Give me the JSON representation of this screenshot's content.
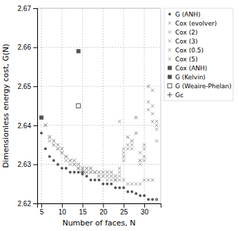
{
  "chart_data": {
    "type": "scatter",
    "xlabel": "Number of faces, N",
    "ylabel": "Dimensionless energy cost, G(N)",
    "xlim": [
      4,
      34
    ],
    "ylim": [
      2.62,
      2.67
    ],
    "xticks": [
      5,
      10,
      15,
      20,
      25,
      30
    ],
    "yticks": [
      2.62,
      2.63,
      2.64,
      2.65,
      2.66,
      2.67
    ],
    "grid": true,
    "legend": "upper right",
    "series": [
      {
        "name": "G (ANH)",
        "color": "#555555",
        "marker": "circle",
        "x": [
          5,
          6,
          7,
          8,
          9,
          10,
          11,
          12,
          13,
          14,
          15,
          16,
          17,
          18,
          19,
          20,
          21,
          22,
          23,
          24,
          25,
          26,
          27,
          28,
          29,
          30,
          31,
          32,
          33
        ],
        "values": [
          2.638,
          2.634,
          2.632,
          2.631,
          2.63,
          2.629,
          2.629,
          2.628,
          2.628,
          2.628,
          2.6275,
          2.627,
          2.626,
          2.626,
          2.626,
          2.625,
          2.625,
          2.625,
          2.624,
          2.624,
          2.624,
          2.623,
          2.623,
          2.6225,
          2.622,
          2.622,
          2.621,
          2.621,
          2.621
        ]
      },
      {
        "name": "Cox (evolver)",
        "color": "#999999",
        "marker": "cross",
        "x": [
          6,
          7,
          8,
          9,
          10,
          11,
          12,
          13,
          14,
          15,
          16,
          17,
          18,
          19,
          20,
          21,
          22,
          23,
          24,
          25,
          26,
          27,
          28,
          29,
          30,
          31,
          32,
          33
        ],
        "values": [
          2.64,
          2.636,
          2.635,
          2.634,
          2.633,
          2.631,
          2.63,
          2.63,
          2.629,
          2.628,
          2.628,
          2.628,
          2.628,
          2.627,
          2.627,
          2.626,
          2.626,
          2.626,
          2.626,
          2.626,
          2.625,
          2.625,
          2.625,
          2.625,
          2.626,
          2.626,
          2.626,
          2.621
        ]
      },
      {
        "name": "Cox (2)",
        "color": "#999999",
        "marker": "cross",
        "x": [
          6,
          7,
          8,
          9,
          10,
          11,
          12,
          13,
          14,
          15,
          16,
          17,
          18,
          19,
          20,
          21,
          22,
          23,
          24,
          25,
          26,
          27,
          28,
          29,
          30,
          31,
          32,
          33
        ],
        "values": [
          2.64,
          2.637,
          2.635,
          2.634,
          2.633,
          2.632,
          2.631,
          2.63,
          2.629,
          2.629,
          2.628,
          2.628,
          2.628,
          2.627,
          2.627,
          2.627,
          2.627,
          2.626,
          2.627,
          2.633,
          2.635,
          2.634,
          2.638,
          2.631,
          2.632,
          2.644,
          2.641,
          2.636
        ]
      },
      {
        "name": "Cox (3)",
        "color": "#999999",
        "marker": "cross",
        "x": [
          6,
          7,
          8,
          9,
          10,
          11,
          12,
          13,
          14,
          15,
          16,
          17,
          18,
          19,
          20,
          21,
          22,
          23,
          24,
          25,
          26,
          27,
          28,
          29,
          30,
          31,
          32,
          33
        ],
        "values": [
          2.64,
          2.637,
          2.636,
          2.635,
          2.634,
          2.632,
          2.631,
          2.631,
          2.63,
          2.629,
          2.629,
          2.629,
          2.628,
          2.628,
          2.628,
          2.628,
          2.628,
          2.627,
          2.641,
          2.631,
          2.637,
          2.636,
          2.642,
          2.631,
          2.635,
          2.65,
          2.649,
          2.64
        ]
      },
      {
        "name": "Cox (0.5)",
        "color": "#999999",
        "marker": "cross",
        "x": [
          6,
          7,
          8,
          9,
          10,
          11,
          12,
          13,
          14,
          15,
          16,
          17,
          18,
          19,
          20,
          21,
          22,
          23,
          24,
          25,
          26,
          27,
          28,
          29,
          30,
          31,
          32,
          33
        ],
        "values": [
          2.64,
          2.637,
          2.635,
          2.634,
          2.633,
          2.632,
          2.631,
          2.63,
          2.629,
          2.628,
          2.628,
          2.628,
          2.628,
          2.627,
          2.627,
          2.627,
          2.627,
          2.626,
          2.628,
          2.632,
          2.634,
          2.635,
          2.638,
          2.63,
          2.631,
          2.646,
          2.643,
          2.639
        ]
      },
      {
        "name": "Cox (5)",
        "color": "#999999",
        "marker": "cross",
        "x": [
          6,
          7,
          8,
          9,
          10,
          11,
          12,
          13,
          14,
          15,
          16,
          17,
          18,
          19,
          20,
          21,
          22,
          23,
          24,
          25,
          26,
          27,
          28,
          29,
          30,
          31,
          32,
          33
        ],
        "values": [
          2.64,
          2.637,
          2.636,
          2.635,
          2.634,
          2.632,
          2.631,
          2.631,
          2.63,
          2.629,
          2.629,
          2.629,
          2.628,
          2.628,
          2.628,
          2.628,
          2.628,
          2.627,
          2.629,
          2.634,
          2.637,
          2.636,
          2.642,
          2.633,
          2.634,
          2.65,
          2.645,
          2.641
        ]
      },
      {
        "name": "Cox (ANH)",
        "color": "#555555",
        "marker": "square",
        "x": [
          5
        ],
        "values": [
          2.642
        ]
      },
      {
        "name": "G (Kelvin)",
        "color": "#555555",
        "marker": "square",
        "x": [
          14
        ],
        "values": [
          2.659
        ]
      },
      {
        "name": "G (Weaire-Phelan)",
        "color": "#555555",
        "marker": "square-open",
        "x": [
          14
        ],
        "values": [
          2.645
        ]
      },
      {
        "name": "Gc",
        "color": "#555555",
        "marker": "plus",
        "x": [
          15
        ],
        "values": [
          2.628
        ]
      }
    ]
  }
}
